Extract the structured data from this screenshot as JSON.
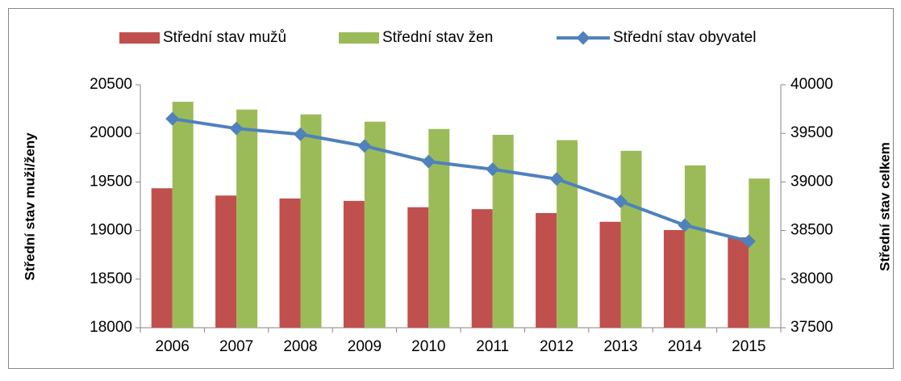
{
  "chart_data": {
    "type": "bar_line",
    "categories": [
      "2006",
      "2007",
      "2008",
      "2009",
      "2010",
      "2011",
      "2012",
      "2013",
      "2014",
      "2015"
    ],
    "series": [
      {
        "name": "Střední stav mužů",
        "type": "bar",
        "color": "#c0504d",
        "values": [
          19435,
          19360,
          19330,
          19305,
          19240,
          19220,
          19180,
          19090,
          19005,
          18930
        ]
      },
      {
        "name": "Střední stav žen",
        "type": "bar",
        "color": "#9bbb59",
        "values": [
          20325,
          20245,
          20195,
          20120,
          20045,
          19985,
          19930,
          19820,
          19670,
          19535
        ]
      },
      {
        "name": "Střední stav obyvatel",
        "type": "line",
        "axis": "y2",
        "color": "#4f81bd",
        "values": [
          39650,
          39550,
          39490,
          39370,
          39210,
          39130,
          39030,
          38800,
          38555,
          38390
        ]
      }
    ],
    "ylabel": "Střední stav muži/ženy",
    "y2label": "Střední stav celkem",
    "ylim": [
      18000,
      20500
    ],
    "yticks": [
      18000,
      18500,
      19000,
      19500,
      20000,
      20500
    ],
    "y2lim": [
      37500,
      40000
    ],
    "y2ticks": [
      37500,
      38000,
      38500,
      39000,
      39500,
      40000
    ],
    "grid": false,
    "legend": "top"
  }
}
